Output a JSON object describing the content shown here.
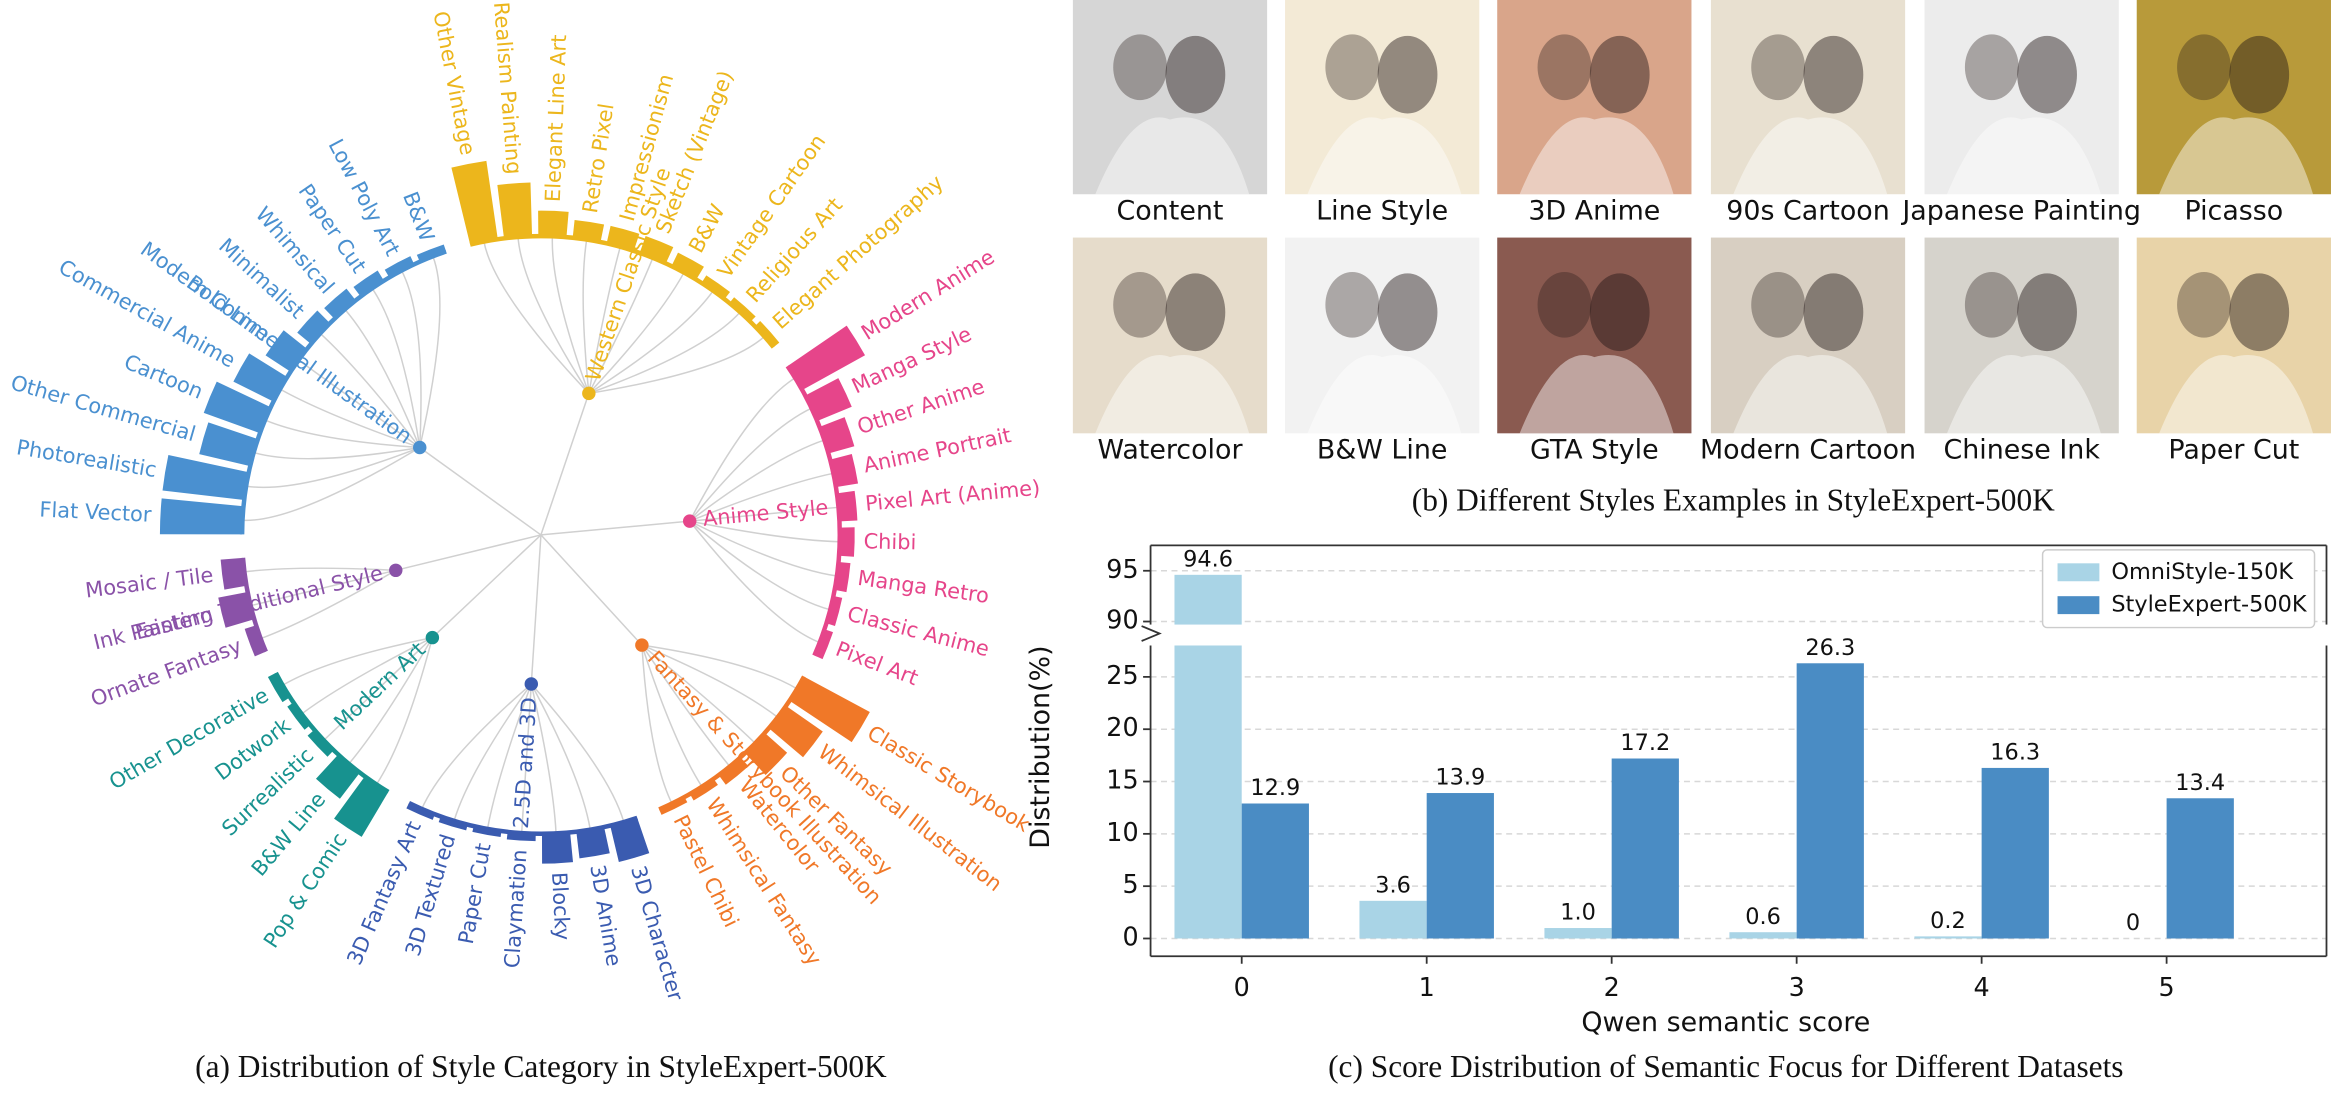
{
  "chart_data": [
    {
      "type": "radial_bar",
      "caption": "(a) Distribution of Style Category in StyleExpert-500K",
      "groups": [
        {
          "name": "Western Classic Style",
          "color": "#ecb61c",
          "categories": [
            "Other Vintage",
            "Realism Painting",
            "Elegant Line Art",
            "Retro Pixel",
            "Impressionism",
            "Sketch (Vintage)",
            "B&W",
            "Vintage Cartoon",
            "Religious Art",
            "Elegant Photography"
          ],
          "values": [
            53,
            36,
            17,
            12,
            12,
            12,
            10,
            6,
            5,
            5
          ]
        },
        {
          "name": "Anime Style",
          "color": "#e6458a",
          "categories": [
            "Modern Anime",
            "Manga Style",
            "Other Anime",
            "Anime Portrait",
            "Pixel Art (Anime)",
            "Chibi",
            "Manga Retro",
            "Classic Anime",
            "Pixel Art"
          ],
          "values": [
            48,
            25,
            18,
            15,
            12,
            10,
            8,
            6,
            6
          ]
        },
        {
          "name": "Fantasy & Storybook Illustration",
          "color": "#f07828",
          "categories": [
            "Classic Storybook",
            "Whimsical Illustration",
            "Other Fantasy",
            "Watercolor",
            "Whimsical Fantasy",
            "Pastel Chibi"
          ],
          "values": [
            50,
            30,
            20,
            8,
            5,
            4
          ]
        },
        {
          "name": "2.5D and 3D",
          "color": "#3a5bb0",
          "categories": [
            "3D Character",
            "3D Anime",
            "Blocky",
            "Claymation",
            "Paper Cut",
            "3D Textured",
            "3D Fantasy Art"
          ],
          "values": [
            25,
            18,
            20,
            5,
            4,
            4,
            4
          ]
        },
        {
          "name": "Modern Art",
          "color": "#17928f",
          "categories": [
            "Pop & Comic",
            "B&W Line",
            "Surrealistic",
            "Dotwork",
            "Other Decorative"
          ],
          "values": [
            35,
            22,
            6,
            5,
            6
          ]
        },
        {
          "name": "Eastern Traditional Style",
          "color": "#8a52a8",
          "categories": [
            "Ornate Fantasy",
            "Ink Painting",
            "Mosaic / Tile"
          ],
          "values": [
            8,
            20,
            15
          ]
        },
        {
          "name": "Modern Commercial Illustration",
          "color": "#4a90d0",
          "categories": [
            "Flat Vector",
            "Photorealistic",
            "Other Commercial",
            "Cartoon",
            "Commercial Anime",
            "Bold Line",
            "Minimalist",
            "Whimsical",
            "Paper Cut",
            "Low Poly Art",
            "B&W"
          ],
          "values": [
            55,
            55,
            35,
            40,
            30,
            20,
            12,
            10,
            8,
            6,
            5
          ]
        }
      ]
    },
    {
      "type": "bar",
      "caption": "(c) Score Distribution of Semantic Focus for Different Datasets",
      "x_label": "Qwen semantic score",
      "y_label": "Distribution(%)",
      "categories": [
        0,
        1,
        2,
        3,
        4,
        5
      ],
      "series": [
        {
          "name": "OmniStyle-150K",
          "color": "#a9d4e6",
          "values": [
            94.6,
            3.6,
            1.0,
            0.6,
            0.2,
            0
          ],
          "value_labels": [
            "94.6",
            "3.6",
            "1.0",
            "0.6",
            "0.2",
            "0"
          ]
        },
        {
          "name": "StyleExpert-500K",
          "color": "#4a8cc4",
          "values": [
            12.9,
            13.9,
            17.2,
            26.3,
            16.3,
            13.4
          ]
        }
      ],
      "ylim": [
        -1.7,
        28
      ],
      "yticks": [
        0,
        5,
        10,
        15,
        20,
        25
      ],
      "ylim_upper": [
        89.7,
        97.5
      ],
      "yticks_upper": [
        90,
        95
      ],
      "grid": true,
      "legend": "upper right"
    }
  ],
  "style_examples": {
    "caption": "(b) Different Styles Examples in StyleExpert-500K",
    "items": [
      "Content",
      "Line Style",
      "3D Anime",
      "90s Cartoon",
      "Japanese Painting",
      "Picasso",
      "Watercolor",
      "B&W Line",
      "GTA Style",
      "Modern Cartoon",
      "Chinese Ink",
      "Paper Cut"
    ]
  }
}
